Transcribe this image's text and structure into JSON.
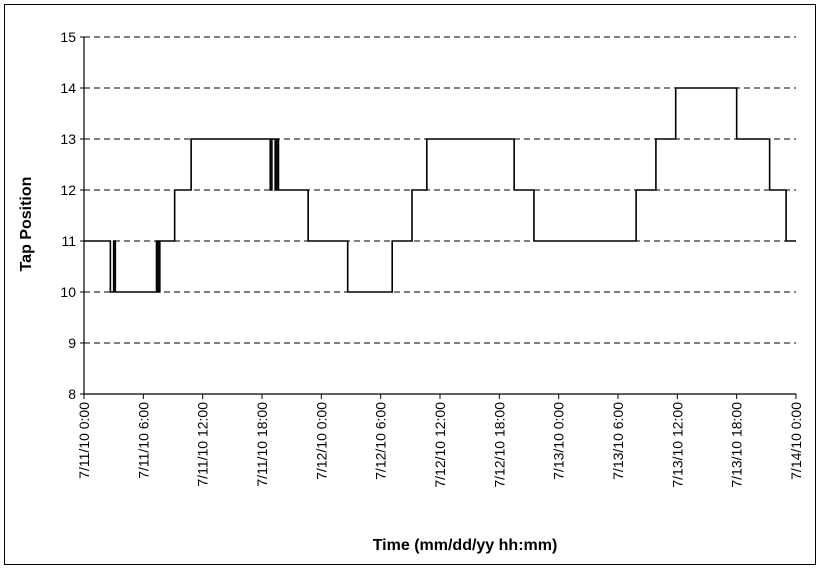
{
  "chart_data": {
    "type": "line",
    "title": "",
    "xlabel": "Time (mm/dd/yy hh:mm)",
    "ylabel": "Tap Position",
    "ylim": [
      8,
      15
    ],
    "yticks": [
      8,
      9,
      10,
      11,
      12,
      13,
      14,
      15
    ],
    "xlim": [
      "7/11/10 0:00",
      "7/14/10 0:00"
    ],
    "xtick_labels": [
      "7/11/10 0:00",
      "7/11/10 6:00",
      "7/11/10 12:00",
      "7/11/10 18:00",
      "7/12/10 0:00",
      "7/12/10 6:00",
      "7/12/10 12:00",
      "7/12/10 18:00",
      "7/13/10 0:00",
      "7/13/10 6:00",
      "7/13/10 12:00",
      "7/13/10 18:00",
      "7/14/10 0:00"
    ],
    "grid": "horizontal dashed",
    "series": [
      {
        "step": "post",
        "x": [
          "7/11/10 0:00",
          "7/11/10 2:40",
          "7/11/10 3:00",
          "7/11/10 3:10",
          "7/11/10 3:20",
          "7/11/10 7:20",
          "7/11/10 7:30",
          "7/11/10 7:40",
          "7/11/10 7:50",
          "7/11/10 9:10",
          "7/11/10 10:50",
          "7/11/10 18:50",
          "7/11/10 19:00",
          "7/11/10 19:20",
          "7/11/10 19:30",
          "7/11/10 19:40",
          "7/11/10 20:00",
          "7/11/10 22:40",
          "7/12/10 2:40",
          "7/12/10 7:10",
          "7/12/10 9:10",
          "7/12/10 10:40",
          "7/12/10 19:30",
          "7/12/10 21:30",
          "7/12/10 21:40",
          "7/13/10 6:10",
          "7/13/10 7:50",
          "7/13/10 9:50",
          "7/13/10 11:50",
          "7/13/10 18:00",
          "7/13/10 21:20",
          "7/13/10 23:00",
          "7/14/10 0:00"
        ],
        "values": [
          11,
          10,
          11,
          10,
          10,
          11,
          10,
          11,
          11,
          12,
          13,
          12,
          13,
          12,
          13,
          12,
          12,
          11,
          10,
          11,
          12,
          13,
          12,
          11,
          11,
          11,
          12,
          13,
          14,
          13,
          12,
          11,
          11
        ]
      }
    ]
  }
}
